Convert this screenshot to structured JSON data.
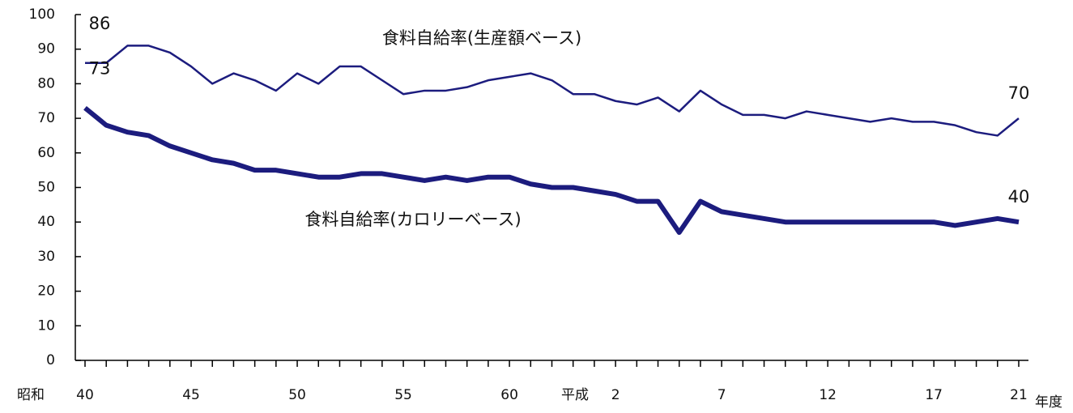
{
  "chart_data": {
    "type": "line",
    "categories": [
      "40",
      null,
      null,
      null,
      null,
      "45",
      null,
      null,
      null,
      null,
      "50",
      null,
      null,
      null,
      null,
      "55",
      null,
      null,
      null,
      null,
      "60",
      null,
      null,
      null,
      null,
      "2",
      null,
      null,
      null,
      null,
      "7",
      null,
      null,
      null,
      null,
      "12",
      null,
      null,
      null,
      null,
      "17",
      null,
      null,
      null,
      "21"
    ],
    "era_labels": [
      "昭和",
      "平成"
    ],
    "xlabel": "年度",
    "series": [
      {
        "name": "食料自給率(生産額ベース)",
        "color": "#1c1c7e",
        "width": 2.5,
        "values": [
          86,
          86,
          91,
          91,
          89,
          85,
          80,
          83,
          81,
          78,
          83,
          80,
          85,
          85,
          81,
          77,
          78,
          78,
          79,
          81,
          82,
          83,
          81,
          77,
          77,
          75,
          74,
          76,
          72,
          78,
          74,
          71,
          71,
          70,
          72,
          71,
          70,
          69,
          70,
          69,
          69,
          68,
          66,
          65,
          70
        ]
      },
      {
        "name": "食料自給率(カロリーベース)",
        "color": "#1c1c7e",
        "width": 6,
        "values": [
          73,
          68,
          66,
          65,
          62,
          60,
          58,
          57,
          55,
          55,
          54,
          53,
          53,
          54,
          54,
          53,
          52,
          53,
          52,
          53,
          53,
          51,
          50,
          50,
          49,
          48,
          46,
          46,
          37,
          46,
          43,
          42,
          41,
          40,
          40,
          40,
          40,
          40,
          40,
          40,
          40,
          39,
          40,
          41,
          40
        ]
      }
    ],
    "ylim": [
      0,
      100
    ],
    "yticks": [
      0,
      10,
      20,
      30,
      40,
      50,
      60,
      70,
      80,
      90,
      100
    ]
  }
}
